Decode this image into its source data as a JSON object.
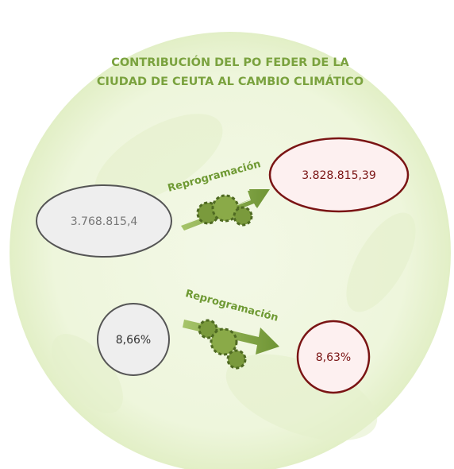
{
  "title": [
    "CONTRIBUCIÓN DEL PO FEDER DE LA",
    "CIUDAD DE CEUTA AL CAMBIO CLIMÁTICO"
  ],
  "rows": [
    {
      "before": "3.768.815,4",
      "label": "Reprogramación",
      "after": "3.828.815,39"
    },
    {
      "before": "8,66%",
      "label": "Reprogramación",
      "after": "8,63%"
    }
  ]
}
